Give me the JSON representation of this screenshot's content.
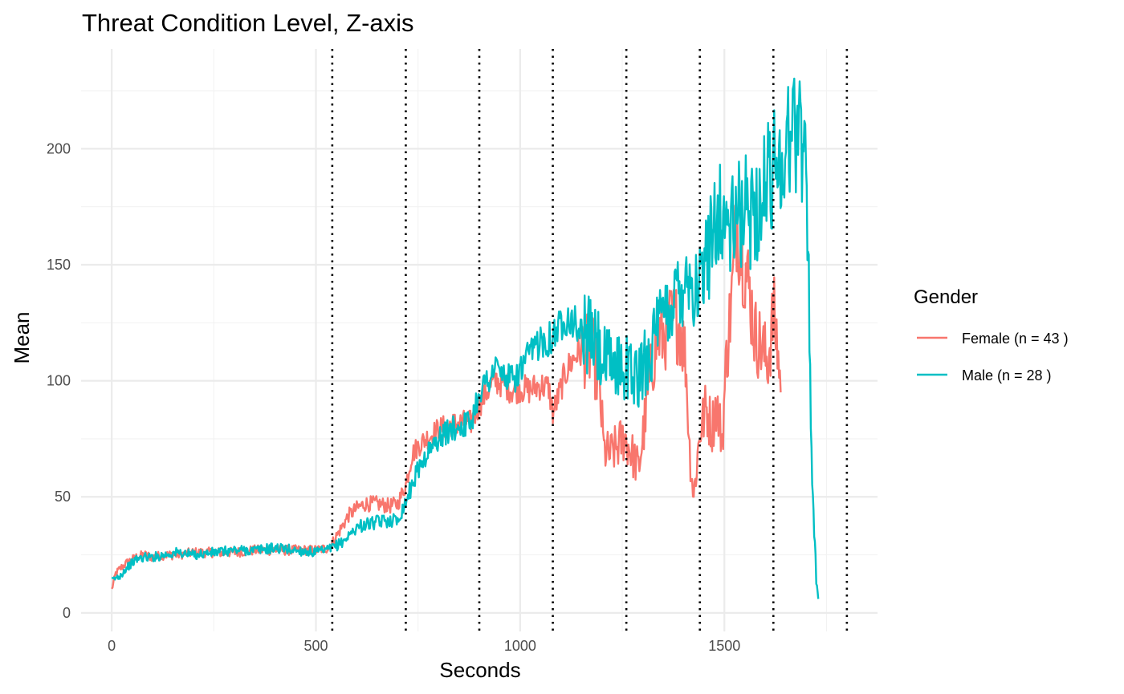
{
  "chart_data": {
    "type": "line",
    "title": "Threat Condition Level, Z-axis",
    "xlabel": "Seconds",
    "ylabel": "Mean",
    "xlim": [
      -75,
      1875
    ],
    "ylim": [
      -8,
      243
    ],
    "x_ticks": [
      0,
      500,
      1000,
      1500
    ],
    "x_tick_labels": [
      "0",
      "500",
      "1000",
      "1500"
    ],
    "y_ticks": [
      0,
      50,
      100,
      150,
      200
    ],
    "y_tick_labels": [
      "0",
      "50",
      "100",
      "150",
      "200"
    ],
    "grid": true,
    "legend": {
      "title": "Gender",
      "position": "right"
    },
    "vertical_reference_lines": [
      540,
      720,
      900,
      1080,
      1260,
      1440,
      1620,
      1800
    ],
    "series": [
      {
        "name": "Female (n = 43 )",
        "color": "#F8766D",
        "points": [
          [
            0,
            10
          ],
          [
            10,
            17
          ],
          [
            20,
            19
          ],
          [
            40,
            22
          ],
          [
            60,
            24
          ],
          [
            80,
            25
          ],
          [
            100,
            24
          ],
          [
            130,
            25
          ],
          [
            160,
            25
          ],
          [
            200,
            26
          ],
          [
            250,
            26
          ],
          [
            300,
            26
          ],
          [
            350,
            27
          ],
          [
            400,
            27
          ],
          [
            450,
            27
          ],
          [
            500,
            27
          ],
          [
            530,
            28
          ],
          [
            540,
            30
          ],
          [
            560,
            36
          ],
          [
            580,
            42
          ],
          [
            600,
            45
          ],
          [
            620,
            47
          ],
          [
            650,
            47
          ],
          [
            680,
            46
          ],
          [
            700,
            47
          ],
          [
            720,
            55
          ],
          [
            735,
            68
          ],
          [
            750,
            72
          ],
          [
            770,
            75
          ],
          [
            800,
            79
          ],
          [
            830,
            81
          ],
          [
            860,
            82
          ],
          [
            880,
            82
          ],
          [
            900,
            90
          ],
          [
            920,
            96
          ],
          [
            940,
            100
          ],
          [
            960,
            99
          ],
          [
            980,
            96
          ],
          [
            1000,
            97
          ],
          [
            1020,
            96
          ],
          [
            1050,
            98
          ],
          [
            1070,
            97
          ],
          [
            1080,
            86
          ],
          [
            1095,
            94
          ],
          [
            1110,
            103
          ],
          [
            1125,
            108
          ],
          [
            1140,
            112
          ],
          [
            1160,
            113
          ],
          [
            1180,
            111
          ],
          [
            1195,
            96
          ],
          [
            1205,
            70
          ],
          [
            1220,
            68
          ],
          [
            1240,
            72
          ],
          [
            1255,
            76
          ],
          [
            1265,
            72
          ],
          [
            1275,
            68
          ],
          [
            1290,
            62
          ],
          [
            1305,
            82
          ],
          [
            1320,
            104
          ],
          [
            1335,
            118
          ],
          [
            1350,
            120
          ],
          [
            1370,
            125
          ],
          [
            1390,
            125
          ],
          [
            1405,
            110
          ],
          [
            1415,
            70
          ],
          [
            1425,
            50
          ],
          [
            1440,
            78
          ],
          [
            1455,
            88
          ],
          [
            1470,
            80
          ],
          [
            1480,
            90
          ],
          [
            1495,
            75
          ],
          [
            1505,
            110
          ],
          [
            1520,
            140
          ],
          [
            1530,
            170
          ],
          [
            1545,
            155
          ],
          [
            1560,
            140
          ],
          [
            1575,
            120
          ],
          [
            1590,
            115
          ],
          [
            1605,
            108
          ],
          [
            1615,
            120
          ],
          [
            1620,
            130
          ],
          [
            1630,
            115
          ],
          [
            1638,
            95
          ]
        ]
      },
      {
        "name": "Male (n = 28 )",
        "color": "#00BFC4",
        "points": [
          [
            0,
            14
          ],
          [
            10,
            15
          ],
          [
            20,
            16
          ],
          [
            40,
            20
          ],
          [
            60,
            23
          ],
          [
            80,
            24
          ],
          [
            100,
            24
          ],
          [
            130,
            25
          ],
          [
            160,
            26
          ],
          [
            200,
            25
          ],
          [
            250,
            26
          ],
          [
            300,
            27
          ],
          [
            350,
            27
          ],
          [
            400,
            28
          ],
          [
            450,
            27
          ],
          [
            500,
            26
          ],
          [
            530,
            27
          ],
          [
            540,
            28
          ],
          [
            560,
            30
          ],
          [
            580,
            33
          ],
          [
            600,
            37
          ],
          [
            620,
            38
          ],
          [
            650,
            39
          ],
          [
            680,
            40
          ],
          [
            700,
            40
          ],
          [
            720,
            48
          ],
          [
            735,
            55
          ],
          [
            750,
            62
          ],
          [
            770,
            68
          ],
          [
            800,
            75
          ],
          [
            830,
            79
          ],
          [
            860,
            81
          ],
          [
            880,
            82
          ],
          [
            900,
            96
          ],
          [
            920,
            100
          ],
          [
            940,
            106
          ],
          [
            960,
            102
          ],
          [
            980,
            100
          ],
          [
            1000,
            104
          ],
          [
            1020,
            110
          ],
          [
            1050,
            118
          ],
          [
            1070,
            118
          ],
          [
            1080,
            120
          ],
          [
            1095,
            123
          ],
          [
            1110,
            128
          ],
          [
            1125,
            127
          ],
          [
            1140,
            123
          ],
          [
            1160,
            120
          ],
          [
            1180,
            118
          ],
          [
            1195,
            112
          ],
          [
            1205,
            108
          ],
          [
            1220,
            107
          ],
          [
            1240,
            106
          ],
          [
            1255,
            107
          ],
          [
            1265,
            105
          ],
          [
            1275,
            104
          ],
          [
            1290,
            100
          ],
          [
            1305,
            108
          ],
          [
            1320,
            115
          ],
          [
            1335,
            120
          ],
          [
            1350,
            127
          ],
          [
            1370,
            134
          ],
          [
            1390,
            140
          ],
          [
            1405,
            148
          ],
          [
            1415,
            145
          ],
          [
            1425,
            140
          ],
          [
            1440,
            140
          ],
          [
            1455,
            150
          ],
          [
            1470,
            165
          ],
          [
            1480,
            175
          ],
          [
            1495,
            170
          ],
          [
            1505,
            168
          ],
          [
            1520,
            165
          ],
          [
            1530,
            170
          ],
          [
            1545,
            173
          ],
          [
            1560,
            172
          ],
          [
            1575,
            175
          ],
          [
            1590,
            178
          ],
          [
            1605,
            185
          ],
          [
            1615,
            190
          ],
          [
            1620,
            193
          ],
          [
            1630,
            195
          ],
          [
            1645,
            198
          ],
          [
            1660,
            205
          ],
          [
            1675,
            210
          ],
          [
            1690,
            205
          ],
          [
            1700,
            200
          ],
          [
            1705,
            160
          ],
          [
            1710,
            100
          ],
          [
            1715,
            60
          ],
          [
            1720,
            35
          ],
          [
            1725,
            15
          ],
          [
            1730,
            6
          ]
        ]
      }
    ]
  }
}
